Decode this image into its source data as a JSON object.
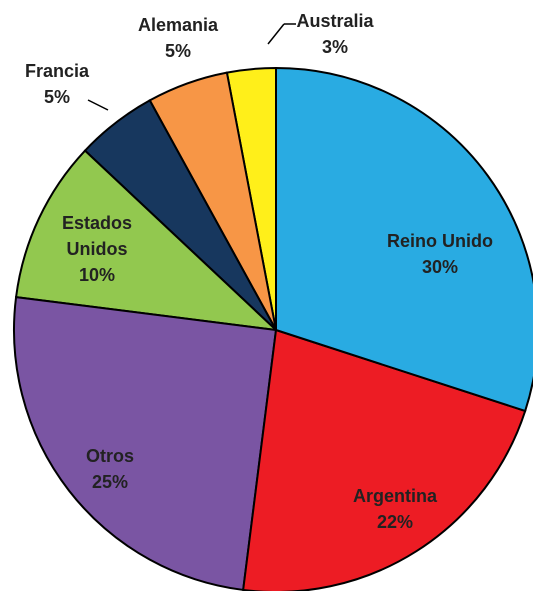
{
  "chart_data": {
    "type": "pie",
    "categories": [
      "Reino Unido",
      "Argentina",
      "Otros",
      "Estados Unidos",
      "Francia",
      "Alemania",
      "Australia"
    ],
    "values": [
      30,
      22,
      25,
      10,
      5,
      5,
      3
    ],
    "value_labels": [
      "30%",
      "22%",
      "25%",
      "10%",
      "5%",
      "5%",
      "3%"
    ],
    "colors": [
      "#29abe2",
      "#ed1c24",
      "#7a55a3",
      "#92c84f",
      "#17375e",
      "#f79646",
      "#ffef1a"
    ]
  }
}
